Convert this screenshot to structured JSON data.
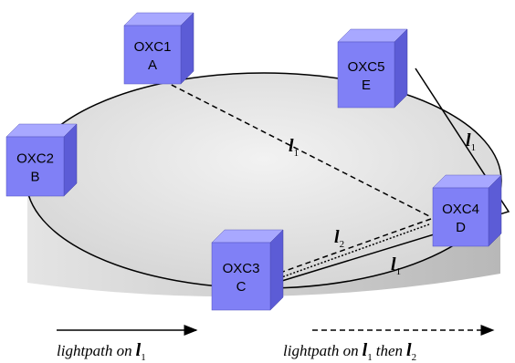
{
  "nodes": [
    {
      "name": "OXC1",
      "letter": "A"
    },
    {
      "name": "OXC5",
      "letter": "E"
    },
    {
      "name": "OXC2",
      "letter": "B"
    },
    {
      "name": "OXC4",
      "letter": "D"
    },
    {
      "name": "OXC3",
      "letter": "C"
    }
  ],
  "path_labels": [
    {
      "symbol": "l",
      "subscript": "1"
    },
    {
      "symbol": "l",
      "subscript": "1"
    },
    {
      "symbol": "l",
      "subscript": "2"
    },
    {
      "symbol": "l",
      "subscript": "1"
    }
  ],
  "legend": [
    {
      "text": "lightpath  on",
      "symbol": "l",
      "subscript": "1"
    },
    {
      "text": "lightpath  on",
      "symbol": "l",
      "subscript": "1",
      "connector": "then",
      "symbol2": "l",
      "subscript2": "2"
    }
  ]
}
